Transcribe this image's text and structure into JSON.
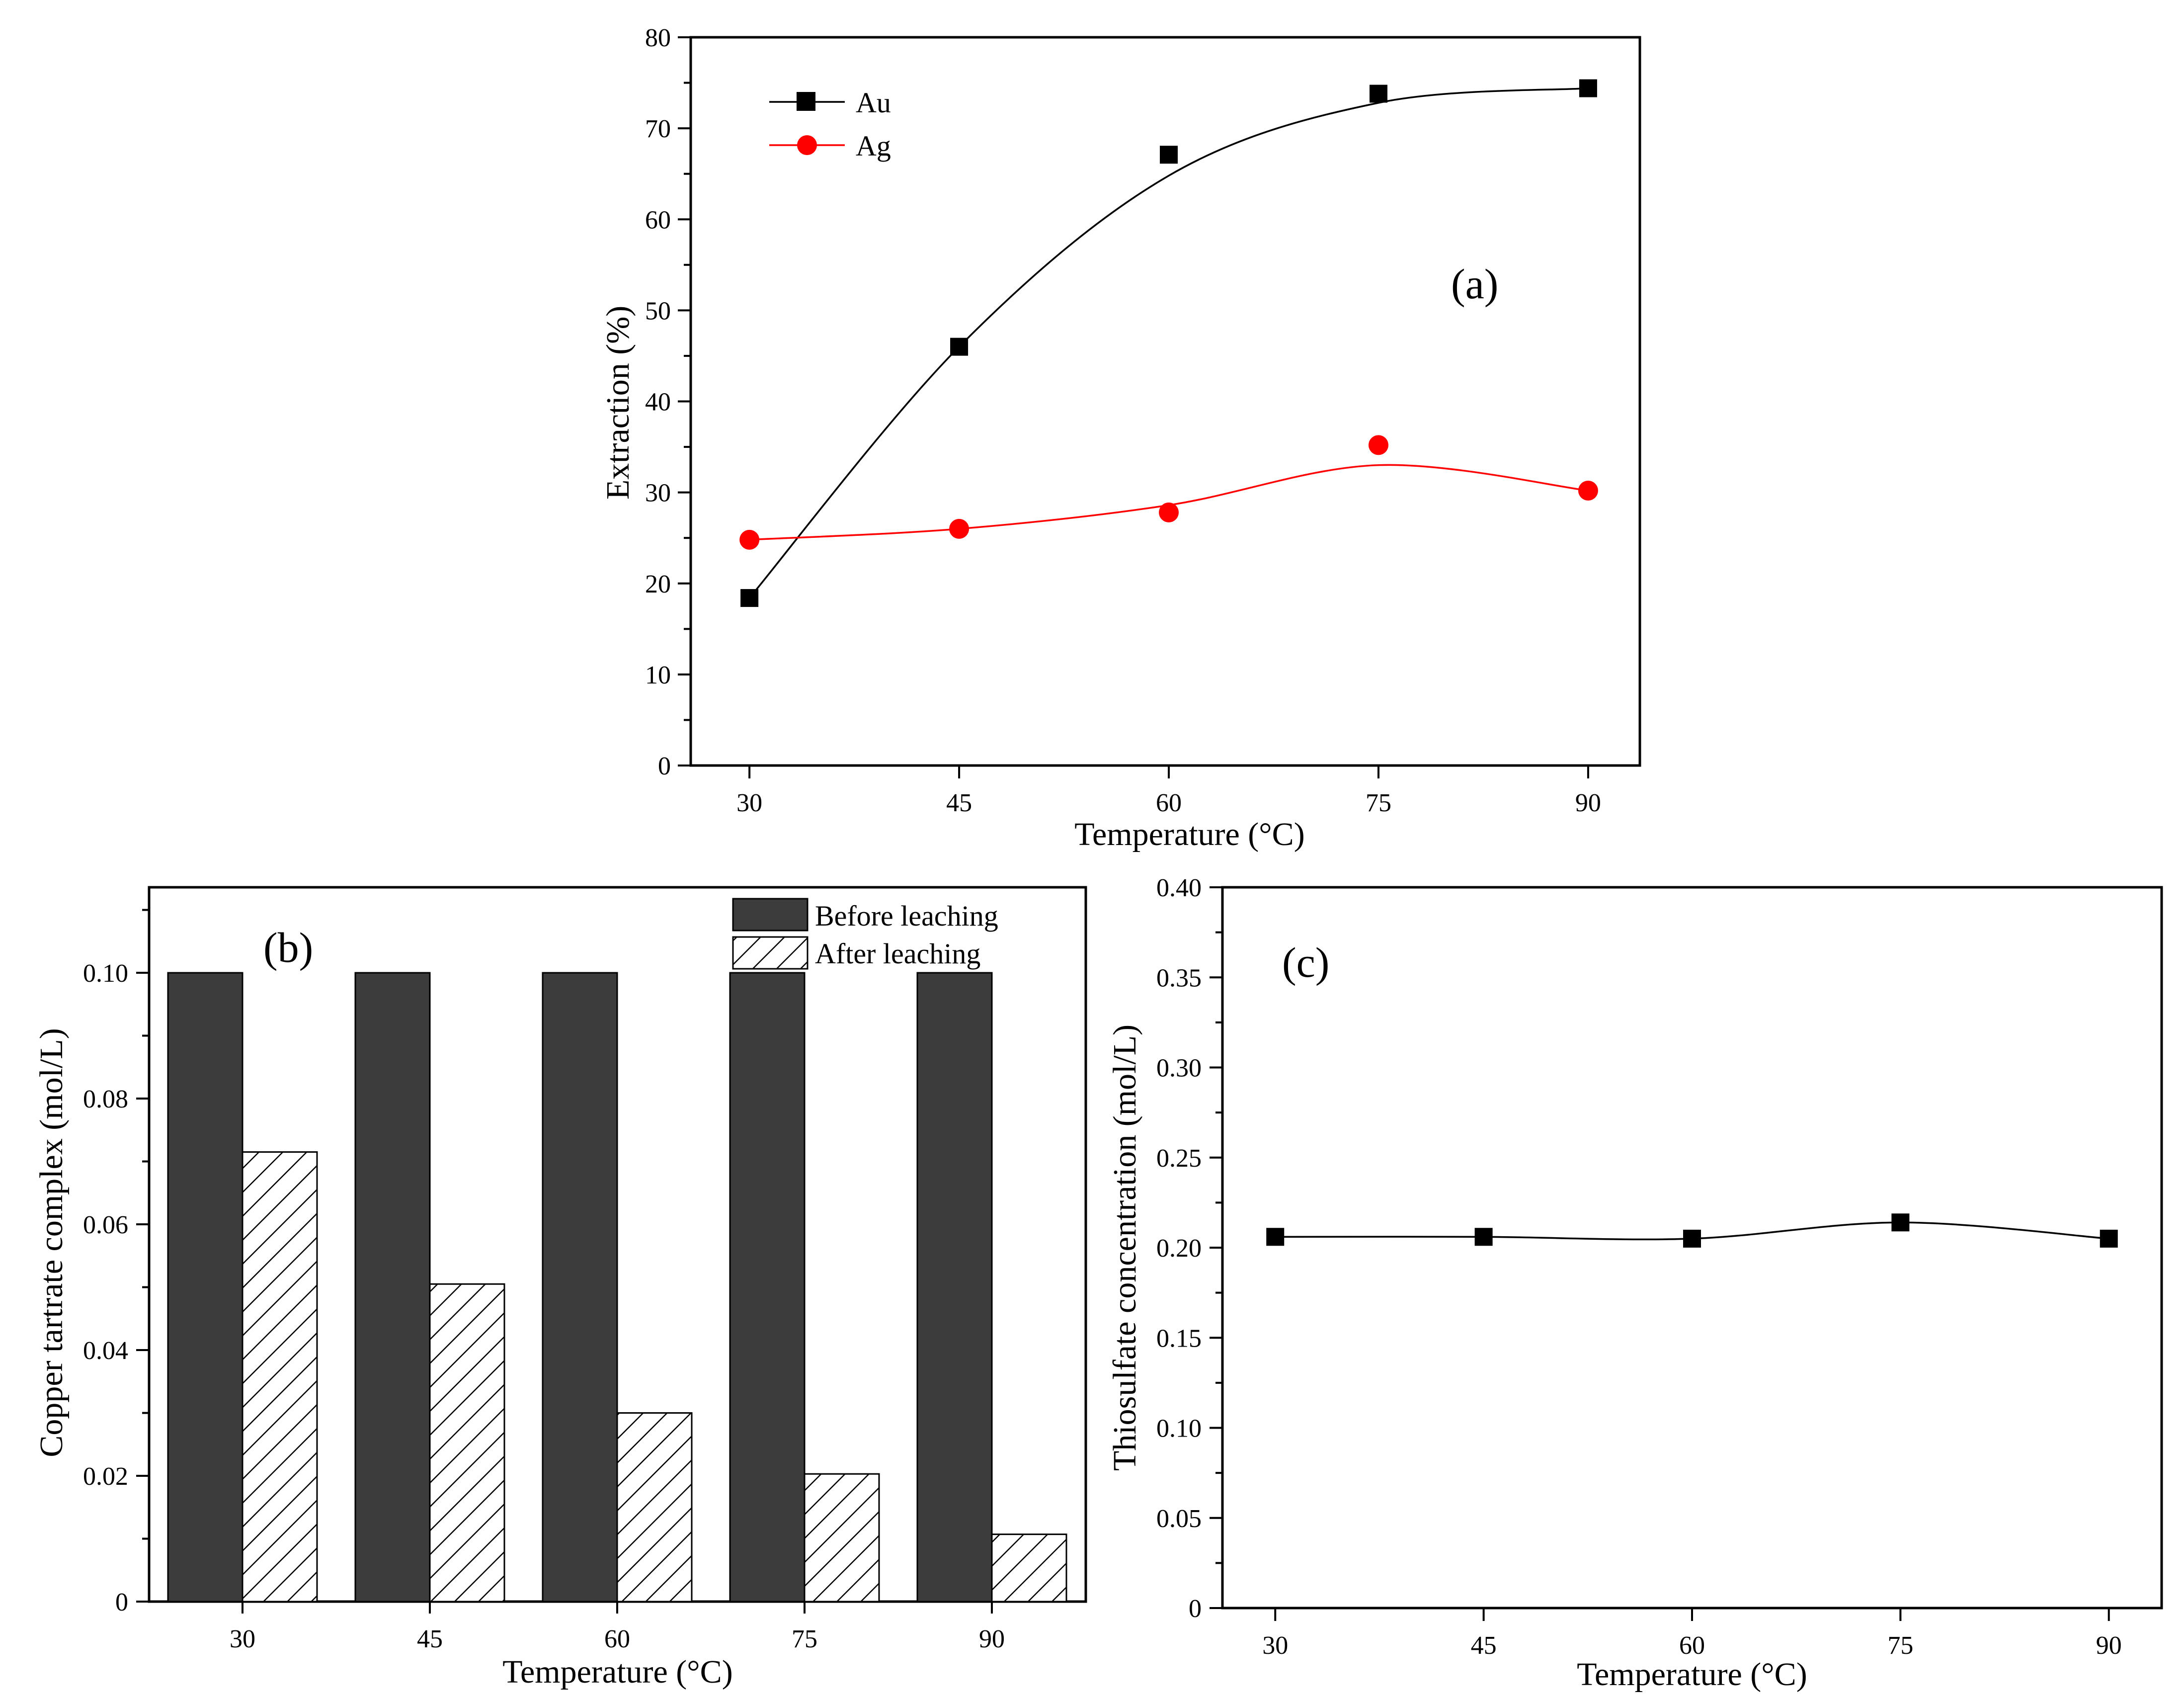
{
  "chart_data": [
    {
      "id": "a",
      "type": "line",
      "panel_label": "(a)",
      "xlabel": "Temperature (°C)",
      "ylabel": "Extraction (%)",
      "x": [
        30,
        45,
        60,
        75,
        90
      ],
      "xticks": [
        "30",
        "45",
        "60",
        "75",
        "90"
      ],
      "xlim": [
        25.8,
        93.7
      ],
      "ylim": [
        0,
        80
      ],
      "yticks": [
        0,
        10,
        20,
        30,
        40,
        50,
        60,
        70,
        80
      ],
      "series": [
        {
          "name": "Au",
          "marker": "square",
          "color": "#000000",
          "values": [
            18.4,
            46.0,
            67.1,
            73.8,
            74.4
          ],
          "fit_curve": [
            18.4,
            46.0,
            64.8,
            72.8,
            74.4
          ]
        },
        {
          "name": "Ag",
          "marker": "circle",
          "color": "#ff0000",
          "values": [
            24.8,
            26.0,
            27.8,
            35.2,
            30.2
          ],
          "fit_curve": [
            24.8,
            26.0,
            28.6,
            33.0,
            30.2
          ]
        }
      ],
      "legend_position": "top-left"
    },
    {
      "id": "b",
      "type": "bar",
      "panel_label": "(b)",
      "xlabel": "Temperature (°C)",
      "ylabel": "Copper tartrate complex (mol/L)",
      "categories": [
        "30",
        "45",
        "60",
        "75",
        "90"
      ],
      "ylim": [
        0,
        0.1136
      ],
      "yticks": [
        "0",
        "0.02",
        "0.04",
        "0.06",
        "0.08",
        "0.10"
      ],
      "ytick_values": [
        0,
        0.02,
        0.04,
        0.06,
        0.08,
        0.1
      ],
      "series": [
        {
          "name": "Before leaching",
          "fill": "#3c3c3c",
          "values": [
            0.1,
            0.1,
            0.1,
            0.1,
            0.1
          ]
        },
        {
          "name": "After leaching",
          "fill": "hatch",
          "values": [
            0.0715,
            0.0505,
            0.03,
            0.0203,
            0.0107
          ]
        }
      ],
      "legend_position": "top-right"
    },
    {
      "id": "c",
      "type": "line",
      "panel_label": "(c)",
      "xlabel": "Temperature (°C)",
      "ylabel": "Thiosulfate concentration (mol/L)",
      "x": [
        30,
        45,
        60,
        75,
        90
      ],
      "xticks": [
        "30",
        "45",
        "60",
        "75",
        "90"
      ],
      "xlim": [
        26.2,
        93.8
      ],
      "ylim": [
        0,
        0.4
      ],
      "yticks": [
        "0",
        "0.05",
        "0.10",
        "0.15",
        "0.20",
        "0.25",
        "0.30",
        "0.35",
        "0.40"
      ],
      "ytick_values": [
        0,
        0.05,
        0.1,
        0.15,
        0.2,
        0.25,
        0.3,
        0.35,
        0.4
      ],
      "series": [
        {
          "name": "Thiosulfate",
          "marker": "square",
          "color": "#000000",
          "values": [
            0.206,
            0.206,
            0.205,
            0.214,
            0.205
          ]
        }
      ]
    }
  ]
}
